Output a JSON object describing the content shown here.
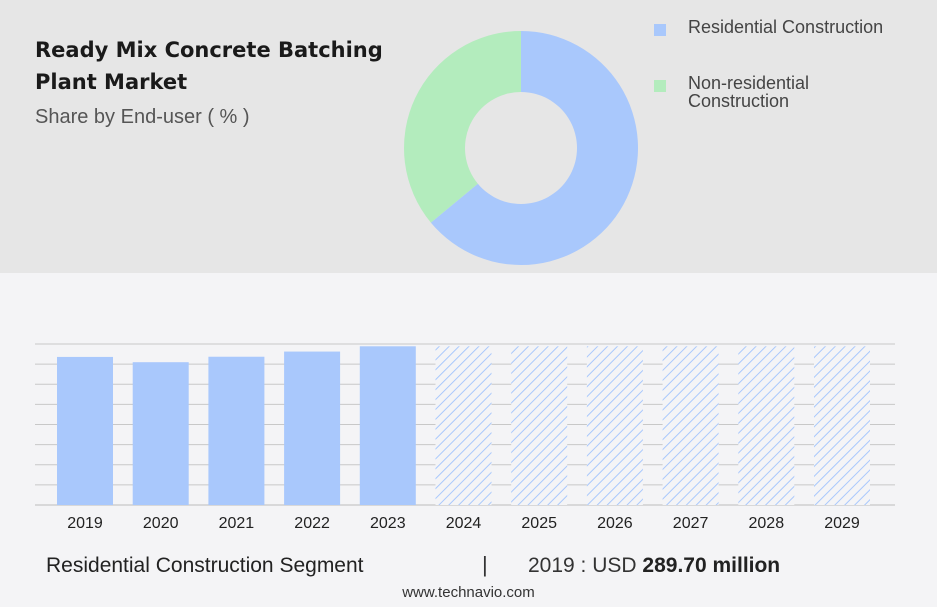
{
  "header": {
    "title": "Ready Mix Concrete Batching Plant Market",
    "subtitle": "Share by End-user ( % )"
  },
  "colors": {
    "residential": "#a9c8fc",
    "non_residential": "#b3ecbd",
    "hatch": "#a9c8fc",
    "grid": "#c8c8c8"
  },
  "legend": [
    {
      "label": "Residential Construction",
      "color": "#a9c8fc"
    },
    {
      "label": "Non-residential Construction",
      "color": "#b3ecbd"
    }
  ],
  "footer": {
    "segment_label": "Residential Construction Segment",
    "separator": "|",
    "year_text": "2019 : USD",
    "value_text": "289.70 million",
    "source": "www.technavio.com"
  },
  "chart_data": [
    {
      "type": "pie",
      "donut": true,
      "labels": [
        "Residential Construction",
        "Non-residential Construction"
      ],
      "values": [
        64,
        36
      ]
    },
    {
      "type": "bar",
      "categories": [
        "2019",
        "2020",
        "2021",
        "2022",
        "2023",
        "2024",
        "2025",
        "2026",
        "2027",
        "2028",
        "2029"
      ],
      "values": [
        289.7,
        279.4,
        290.1,
        300.2,
        310.5,
        310.5,
        310.5,
        310.5,
        310.5,
        310.5,
        310.5
      ],
      "forecast_from": "2024",
      "ylim": [
        0,
        315
      ],
      "grid": true
    }
  ]
}
